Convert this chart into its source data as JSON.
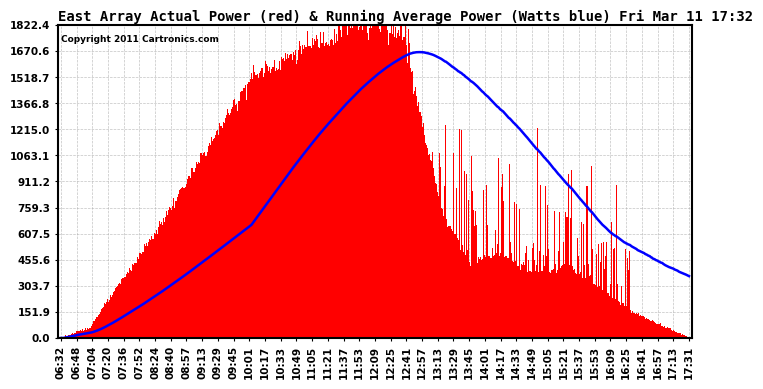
{
  "title": "East Array Actual Power (red) & Running Average Power (Watts blue) Fri Mar 11 17:32",
  "copyright": "Copyright 2011 Cartronics.com",
  "ymax": 1822.4,
  "ymin": 0.0,
  "yticks": [
    0.0,
    151.9,
    303.7,
    455.6,
    607.5,
    759.3,
    911.2,
    1063.1,
    1215.0,
    1366.8,
    1518.7,
    1670.6,
    1822.4
  ],
  "ytick_labels": [
    "0.0",
    "151.9",
    "303.7",
    "455.6",
    "607.5",
    "759.3",
    "911.2",
    "1063.1",
    "1215.0",
    "1366.8",
    "1518.7",
    "1670.6",
    "1822.4"
  ],
  "xtick_labels": [
    "06:32",
    "06:48",
    "07:04",
    "07:20",
    "07:36",
    "07:52",
    "08:24",
    "08:40",
    "08:57",
    "09:13",
    "09:29",
    "09:45",
    "10:01",
    "10:17",
    "10:33",
    "10:49",
    "11:05",
    "11:21",
    "11:37",
    "11:53",
    "12:09",
    "12:25",
    "12:41",
    "12:57",
    "13:13",
    "13:29",
    "13:45",
    "14:01",
    "14:17",
    "14:33",
    "14:49",
    "15:05",
    "15:21",
    "15:37",
    "15:53",
    "16:09",
    "16:25",
    "16:41",
    "16:57",
    "17:13",
    "17:31"
  ],
  "background_color": "#ffffff",
  "plot_bg_color": "#ffffff",
  "grid_color": "#aaaaaa",
  "red_color": "#ff0000",
  "blue_color": "#0000ff",
  "title_fontsize": 10,
  "tick_fontsize": 7.5
}
